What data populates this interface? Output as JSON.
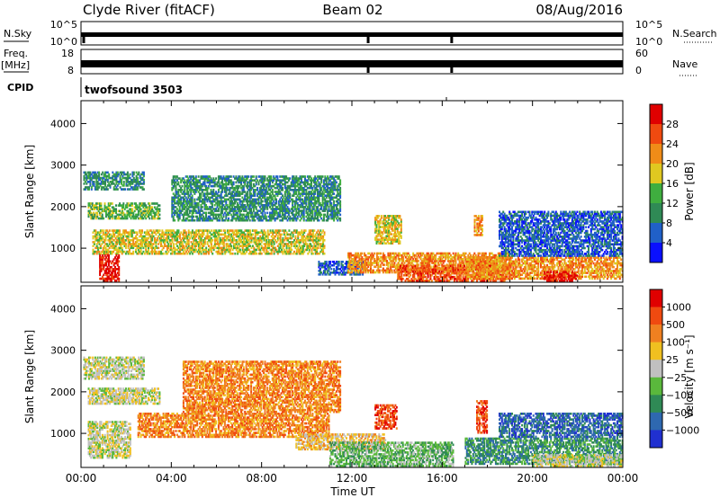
{
  "header": {
    "station": "Clyde River (fitACF)",
    "beam": "Beam 02",
    "date": "08/Aug/2016"
  },
  "top_panels": {
    "nsky_label": "N.Sky",
    "nsky_ticks": [
      "10^5",
      "10^0"
    ],
    "nsearch_label": "N.Search",
    "nsearch_ticks": [
      "10^5",
      "10^0"
    ],
    "freq_label": "Freq.",
    "freq_unit": "[MHz]",
    "freq_ticks": [
      "18",
      "8"
    ],
    "nave_label": "Nave",
    "nave_ticks": [
      "60",
      "0"
    ],
    "cpid_label": "CPID",
    "cpid_value": "twofsound 3503"
  },
  "chart_data": [
    {
      "type": "heatmap",
      "name": "power",
      "ylabel": "Slant Range [km]",
      "ylim": [
        180,
        4550
      ],
      "yticks": [
        1000,
        2000,
        3000,
        4000
      ],
      "xlim": [
        0,
        24
      ],
      "xticks": [
        "00:00",
        "04:00",
        "08:00",
        "12:00",
        "16:00",
        "20:00",
        "00:00"
      ],
      "colorbar": {
        "label": "Power [dB]",
        "ticks": [
          "4",
          "8",
          "12",
          "16",
          "20",
          "24",
          "28"
        ],
        "colors": [
          "#0a10ff",
          "#2060c8",
          "#2f8a55",
          "#3fae3f",
          "#e0c820",
          "#f08c18",
          "#f04a10",
          "#e00000"
        ]
      },
      "regions": [
        {
          "t": [
            0.1,
            2.8
          ],
          "r": [
            2400,
            2850
          ],
          "level": 2
        },
        {
          "t": [
            0.3,
            3.5
          ],
          "r": [
            1700,
            2100
          ],
          "level": 3
        },
        {
          "t": [
            0.5,
            10.8
          ],
          "r": [
            850,
            1450
          ],
          "level": 4
        },
        {
          "t": [
            0.8,
            1.7
          ],
          "r": [
            200,
            850
          ],
          "level": 7
        },
        {
          "t": [
            4.0,
            11.5
          ],
          "r": [
            1650,
            2750
          ],
          "level": 2
        },
        {
          "t": [
            10.5,
            12.5
          ],
          "r": [
            350,
            700
          ],
          "level": 1
        },
        {
          "t": [
            11.8,
            19.0
          ],
          "r": [
            400,
            900
          ],
          "level": 5
        },
        {
          "t": [
            14.0,
            19.0
          ],
          "r": [
            200,
            600
          ],
          "level": 6
        },
        {
          "t": [
            13.0,
            14.2
          ],
          "r": [
            1100,
            1800
          ],
          "level": 4
        },
        {
          "t": [
            17.0,
            24.0
          ],
          "r": [
            250,
            800
          ],
          "level": 5
        },
        {
          "t": [
            20.5,
            22.0
          ],
          "r": [
            200,
            450
          ],
          "level": 7
        },
        {
          "t": [
            18.5,
            24.0
          ],
          "r": [
            800,
            1900
          ],
          "level": 1
        },
        {
          "t": [
            17.4,
            17.8
          ],
          "r": [
            1300,
            1800
          ],
          "level": 5
        }
      ]
    },
    {
      "type": "heatmap",
      "name": "velocity",
      "ylabel": "Slant Range [km]",
      "ylim": [
        180,
        4550
      ],
      "yticks": [
        1000,
        2000,
        3000,
        4000
      ],
      "xlim": [
        0,
        24
      ],
      "xticks": [
        "00:00",
        "04:00",
        "08:00",
        "12:00",
        "16:00",
        "20:00",
        "00:00"
      ],
      "xlabel": "Time UT",
      "colorbar": {
        "label": "Velocity [m s⁻¹]",
        "ticks": [
          "1000",
          "500",
          "100",
          "25",
          "−25",
          "−100",
          "−500",
          "−1000"
        ],
        "colors": [
          "#2030d0",
          "#2e68b0",
          "#2f8a55",
          "#5ab83c",
          "#c0c0c0",
          "#f0c020",
          "#f08020",
          "#f04a10",
          "#e00000"
        ]
      },
      "regions": [
        {
          "t": [
            0.1,
            2.8
          ],
          "r": [
            2300,
            2850
          ],
          "level": 4
        },
        {
          "t": [
            0.3,
            3.5
          ],
          "r": [
            1700,
            2100
          ],
          "level": 4
        },
        {
          "t": [
            2.5,
            11.0
          ],
          "r": [
            900,
            1500
          ],
          "level": 6
        },
        {
          "t": [
            0.3,
            2.2
          ],
          "r": [
            400,
            1300
          ],
          "level": 4
        },
        {
          "t": [
            4.5,
            11.5
          ],
          "r": [
            1500,
            2750
          ],
          "level": 6
        },
        {
          "t": [
            9.5,
            13.5
          ],
          "r": [
            600,
            1000
          ],
          "level": 5
        },
        {
          "t": [
            11.0,
            16.5
          ],
          "r": [
            200,
            800
          ],
          "level": 3
        },
        {
          "t": [
            13.0,
            14.0
          ],
          "r": [
            1100,
            1700
          ],
          "level": 7
        },
        {
          "t": [
            17.5,
            18.0
          ],
          "r": [
            1000,
            1800
          ],
          "level": 7
        },
        {
          "t": [
            17.0,
            24.0
          ],
          "r": [
            250,
            900
          ],
          "level": 2
        },
        {
          "t": [
            18.5,
            24.0
          ],
          "r": [
            900,
            1500
          ],
          "level": 1
        },
        {
          "t": [
            20.0,
            24.0
          ],
          "r": [
            200,
            500
          ],
          "level": 4
        }
      ]
    }
  ]
}
